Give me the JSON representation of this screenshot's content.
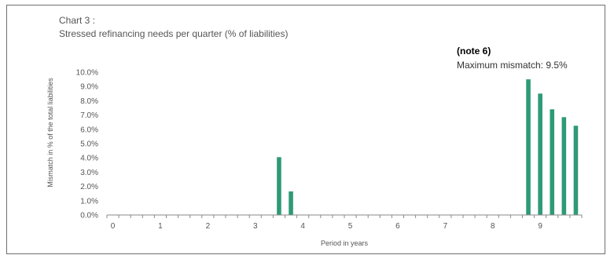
{
  "chart_data": {
    "type": "bar",
    "title_line1": "Chart 3 :",
    "title_line2": "Stressed refinancing needs per quarter  (% of liabilities)",
    "note_heading": "(note 6)",
    "note_text": "Maximum mismatch: 9.5%",
    "xlabel": "Period in years",
    "ylabel": "Mismatch in % of the total liabilities",
    "ylim": [
      0,
      10
    ],
    "yticks": [
      "0.0%",
      "1.0%",
      "2.0%",
      "3.0%",
      "4.0%",
      "5.0%",
      "6.0%",
      "7.0%",
      "8.0%",
      "9.0%",
      "10.0%"
    ],
    "xticks": [
      "0",
      "1",
      "2",
      "3",
      "4",
      "5",
      "6",
      "7",
      "8",
      "9"
    ],
    "quarters_total": 40,
    "bar_color": "#2e9a77",
    "bars": [
      {
        "quarter": 14,
        "value": 4.05
      },
      {
        "quarter": 15,
        "value": 1.65
      },
      {
        "quarter": 35,
        "value": 9.5
      },
      {
        "quarter": 36,
        "value": 8.5
      },
      {
        "quarter": 37,
        "value": 7.4
      },
      {
        "quarter": 38,
        "value": 6.85
      },
      {
        "quarter": 39,
        "value": 6.25
      }
    ]
  }
}
